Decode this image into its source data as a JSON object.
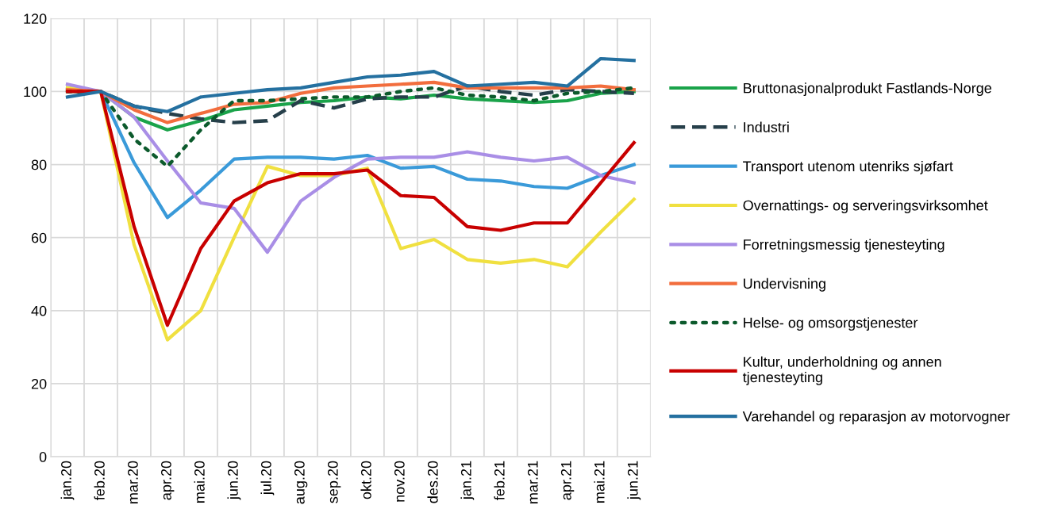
{
  "chart_data": {
    "type": "line",
    "categories": [
      "jan.20",
      "feb.20",
      "mar.20",
      "apr.20",
      "mai.20",
      "jun.20",
      "jul.20",
      "aug.20",
      "sep.20",
      "okt.20",
      "nov.20",
      "des.20",
      "jan.21",
      "feb.21",
      "mar.21",
      "apr.21",
      "mai.21",
      "jun.21"
    ],
    "ylim": [
      0,
      120
    ],
    "yticks": [
      0,
      20,
      40,
      60,
      80,
      100,
      120
    ],
    "grid": true,
    "legend": "right",
    "marker": "none",
    "series": [
      {
        "name": "Bruttonasjonalprodukt Fastlands-Norge",
        "color": "#1aa34a",
        "line_style": "solid",
        "values": [
          100,
          100,
          93,
          89.5,
          92,
          95,
          96,
          97,
          97.5,
          98.5,
          98,
          99,
          98,
          97.5,
          97,
          97.5,
          99.5,
          100
        ]
      },
      {
        "name": "Industri",
        "color": "#263f4a",
        "line_style": "dashed",
        "values": [
          100.5,
          100,
          96,
          94,
          92.5,
          91.5,
          92,
          97.5,
          95.5,
          98,
          98.5,
          98.5,
          101.5,
          100,
          99,
          100.5,
          100,
          99.5
        ]
      },
      {
        "name": "Transport utenom utenriks sjøfart",
        "color": "#3a9ad9",
        "line_style": "solid",
        "values": [
          101,
          100,
          80.5,
          65.5,
          73,
          81.5,
          82,
          82,
          81.5,
          82.5,
          79,
          79.5,
          76,
          75.5,
          74,
          73.5,
          77,
          80
        ]
      },
      {
        "name": "Overnattings- og serveringsvirksomhet",
        "color": "#f0e040",
        "line_style": "solid",
        "values": [
          101,
          100,
          58,
          32,
          40,
          60,
          79.5,
          77,
          77,
          79,
          57,
          59.5,
          54,
          53,
          54,
          52,
          61.5,
          70.5
        ]
      },
      {
        "name": "Forretningsmessig tjenesteyting",
        "color": "#a98ee6",
        "line_style": "solid",
        "values": [
          102,
          100,
          93,
          81,
          69.5,
          68,
          56,
          70,
          76.5,
          81.5,
          82,
          82,
          83.5,
          82,
          81,
          82,
          77,
          75
        ]
      },
      {
        "name": "Undervisning",
        "color": "#f26d3d",
        "line_style": "solid",
        "values": [
          100.5,
          100,
          95,
          91.5,
          94,
          96.5,
          97,
          99.5,
          101,
          101.5,
          102,
          102.5,
          101,
          101,
          101,
          101,
          101.5,
          100.5
        ]
      },
      {
        "name": "Helse- og omsorgstjenester",
        "color": "#0c5a2c",
        "line_style": "dotted",
        "values": [
          100,
          100,
          87,
          79.5,
          89.5,
          97.5,
          97.5,
          98,
          98.5,
          98.5,
          100,
          101,
          99,
          98.5,
          97.5,
          99.5,
          100,
          101
        ]
      },
      {
        "name": "Kultur, underholdning og annen\ntjenesteyting",
        "color": "#c80000",
        "line_style": "solid",
        "values": [
          100,
          100,
          63,
          36,
          57,
          70,
          75,
          77.5,
          77.5,
          78.5,
          71.5,
          71,
          63,
          62,
          64,
          64,
          75,
          86
        ]
      },
      {
        "name": "Varehandel og reparasjon av motorvogner",
        "color": "#2470a0",
        "line_style": "solid",
        "values": [
          98.5,
          100,
          96,
          94.5,
          98.5,
          99.5,
          100.5,
          101,
          102.5,
          104,
          104.5,
          105.5,
          101.5,
          102,
          102.5,
          101.5,
          109,
          108.5
        ]
      }
    ]
  }
}
